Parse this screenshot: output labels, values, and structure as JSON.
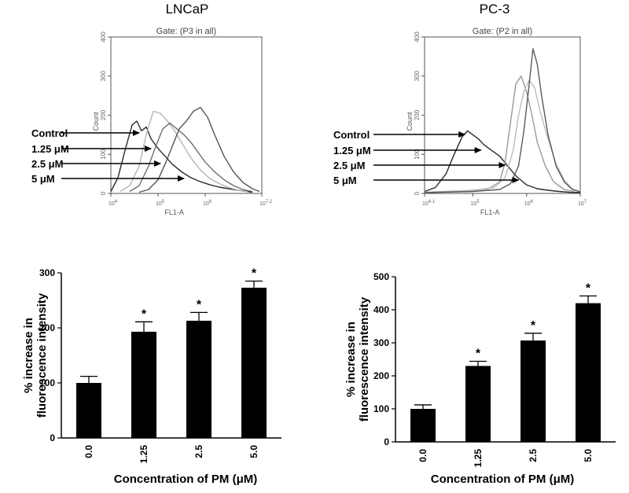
{
  "panels": {
    "left_title": "LNCaP",
    "right_title": "PC-3"
  },
  "chart_data": [
    {
      "type": "line",
      "panel": "LNCaP",
      "title": "Gate: (P3 in all)",
      "xlabel": "FL1-A",
      "ylabel": "Count",
      "xscale": "log",
      "xlim": [
        4,
        7.2
      ],
      "ylim": [
        0,
        400
      ],
      "xticks": [
        {
          "pos": 4,
          "base": "10",
          "exp": "4"
        },
        {
          "pos": 5,
          "base": "10",
          "exp": "5"
        },
        {
          "pos": 6,
          "base": "10",
          "exp": "6"
        },
        {
          "pos": 7.2,
          "base": "10",
          "exp": "7.2"
        }
      ],
      "yticks": [
        0,
        100,
        200,
        300,
        400
      ],
      "labels": [
        "Control",
        "1.25 μM",
        "2.5 μM",
        "5 μM"
      ],
      "arrow_targets": [
        [
          4.6,
          165
        ],
        [
          4.85,
          118
        ],
        [
          5.05,
          88
        ],
        [
          5.55,
          40
        ]
      ],
      "series": [
        {
          "color": "#2a2a2a",
          "x": [
            4.0,
            4.15,
            4.3,
            4.45,
            4.55,
            4.65,
            4.75,
            4.85,
            5.0,
            5.15,
            5.3,
            5.5,
            5.7,
            5.9,
            6.1,
            6.3,
            6.5,
            6.7,
            6.9,
            7.0
          ],
          "y": [
            5,
            40,
            110,
            175,
            185,
            160,
            170,
            140,
            115,
            95,
            75,
            55,
            40,
            30,
            22,
            16,
            12,
            8,
            5,
            3
          ]
        },
        {
          "color": "#b4b4b4",
          "x": [
            4.2,
            4.4,
            4.6,
            4.75,
            4.9,
            5.05,
            5.2,
            5.35,
            5.5,
            5.7,
            5.9,
            6.1,
            6.3,
            6.5,
            6.7,
            6.9
          ],
          "y": [
            5,
            20,
            70,
            150,
            210,
            205,
            185,
            160,
            130,
            90,
            60,
            38,
            25,
            15,
            8,
            4
          ]
        },
        {
          "color": "#6e6e6e",
          "x": [
            4.4,
            4.6,
            4.8,
            4.95,
            5.1,
            5.25,
            5.4,
            5.55,
            5.7,
            5.85,
            6.0,
            6.2,
            6.4,
            6.6,
            6.8,
            7.0
          ],
          "y": [
            5,
            20,
            70,
            120,
            165,
            180,
            165,
            150,
            130,
            105,
            80,
            55,
            35,
            20,
            10,
            5
          ]
        },
        {
          "color": "#555555",
          "x": [
            4.6,
            4.8,
            5.0,
            5.15,
            5.3,
            5.45,
            5.6,
            5.75,
            5.9,
            6.05,
            6.2,
            6.4,
            6.6,
            6.8,
            7.0,
            7.15
          ],
          "y": [
            3,
            10,
            35,
            75,
            120,
            165,
            185,
            210,
            220,
            195,
            150,
            95,
            55,
            28,
            12,
            5
          ]
        }
      ]
    },
    {
      "type": "line",
      "panel": "PC-3",
      "title": "Gate: (P2 in all)",
      "xlabel": "FL1-A",
      "ylabel": "Count",
      "xscale": "log",
      "xlim": [
        4.1,
        7
      ],
      "ylim": [
        0,
        400
      ],
      "xticks": [
        {
          "pos": 4.1,
          "base": "10",
          "exp": "4.1"
        },
        {
          "pos": 5,
          "base": "10",
          "exp": "5"
        },
        {
          "pos": 6,
          "base": "10",
          "exp": "6"
        },
        {
          "pos": 7,
          "base": "10",
          "exp": "7"
        }
      ],
      "yticks": [
        0,
        100,
        200,
        300,
        400
      ],
      "labels": [
        "Control",
        "1.25 μM",
        "2.5 μM",
        "5 μM"
      ],
      "arrow_targets": [
        [
          4.85,
          150
        ],
        [
          5.15,
          110
        ],
        [
          5.6,
          72
        ],
        [
          5.85,
          40
        ]
      ],
      "series": [
        {
          "color": "#2a2a2a",
          "x": [
            4.1,
            4.3,
            4.5,
            4.65,
            4.8,
            4.9,
            5.0,
            5.1,
            5.2,
            5.35,
            5.5,
            5.65,
            5.8,
            6.0,
            6.2,
            6.4,
            6.6,
            6.8,
            7.0
          ],
          "y": [
            5,
            15,
            50,
            100,
            145,
            160,
            150,
            140,
            125,
            110,
            95,
            70,
            45,
            22,
            12,
            8,
            5,
            3,
            2
          ]
        },
        {
          "color": "#999999",
          "x": [
            4.1,
            4.6,
            5.0,
            5.3,
            5.5,
            5.6,
            5.7,
            5.8,
            5.9,
            6.0,
            6.1,
            6.2,
            6.35,
            6.5,
            6.7,
            6.9
          ],
          "y": [
            3,
            5,
            8,
            12,
            30,
            80,
            180,
            280,
            300,
            260,
            200,
            130,
            70,
            30,
            10,
            4
          ]
        },
        {
          "color": "#bdbdbd",
          "x": [
            4.1,
            5.0,
            5.4,
            5.6,
            5.75,
            5.85,
            5.95,
            6.05,
            6.15,
            6.25,
            6.4,
            6.55,
            6.7,
            6.85,
            7.0
          ],
          "y": [
            3,
            8,
            15,
            40,
            110,
            200,
            260,
            290,
            270,
            210,
            140,
            75,
            35,
            12,
            5
          ]
        },
        {
          "color": "#5a5a5a",
          "x": [
            4.1,
            5.0,
            5.5,
            5.7,
            5.85,
            5.95,
            6.05,
            6.12,
            6.2,
            6.28,
            6.4,
            6.55,
            6.7,
            6.85,
            7.0
          ],
          "y": [
            2,
            5,
            10,
            25,
            70,
            160,
            280,
            370,
            330,
            250,
            150,
            70,
            30,
            10,
            4
          ]
        }
      ]
    },
    {
      "type": "bar",
      "panel": "LNCaP",
      "categories": [
        "0.0",
        "1.25",
        "2.5",
        "5.0"
      ],
      "values": [
        100,
        193,
        213,
        273
      ],
      "errors": [
        12,
        18,
        15,
        12
      ],
      "significance": [
        "",
        "*",
        "*",
        "*"
      ],
      "xlabel": "Concentration of PM (μM)",
      "ylabel_lines": [
        "% increase in",
        "fluorescence intensity"
      ],
      "ylim": [
        0,
        300
      ],
      "yticks": [
        0,
        100,
        200,
        300
      ]
    },
    {
      "type": "bar",
      "panel": "PC-3",
      "categories": [
        "0.0",
        "1.25",
        "2.5",
        "5.0"
      ],
      "values": [
        100,
        230,
        307,
        420
      ],
      "errors": [
        12,
        14,
        22,
        22
      ],
      "significance": [
        "",
        "*",
        "*",
        "*"
      ],
      "xlabel": "Concentration of PM (μM)",
      "ylabel_lines": [
        "% increase in",
        "fluorescence intensity"
      ],
      "ylim": [
        0,
        500
      ],
      "yticks": [
        0,
        100,
        200,
        300,
        400,
        500
      ]
    }
  ]
}
